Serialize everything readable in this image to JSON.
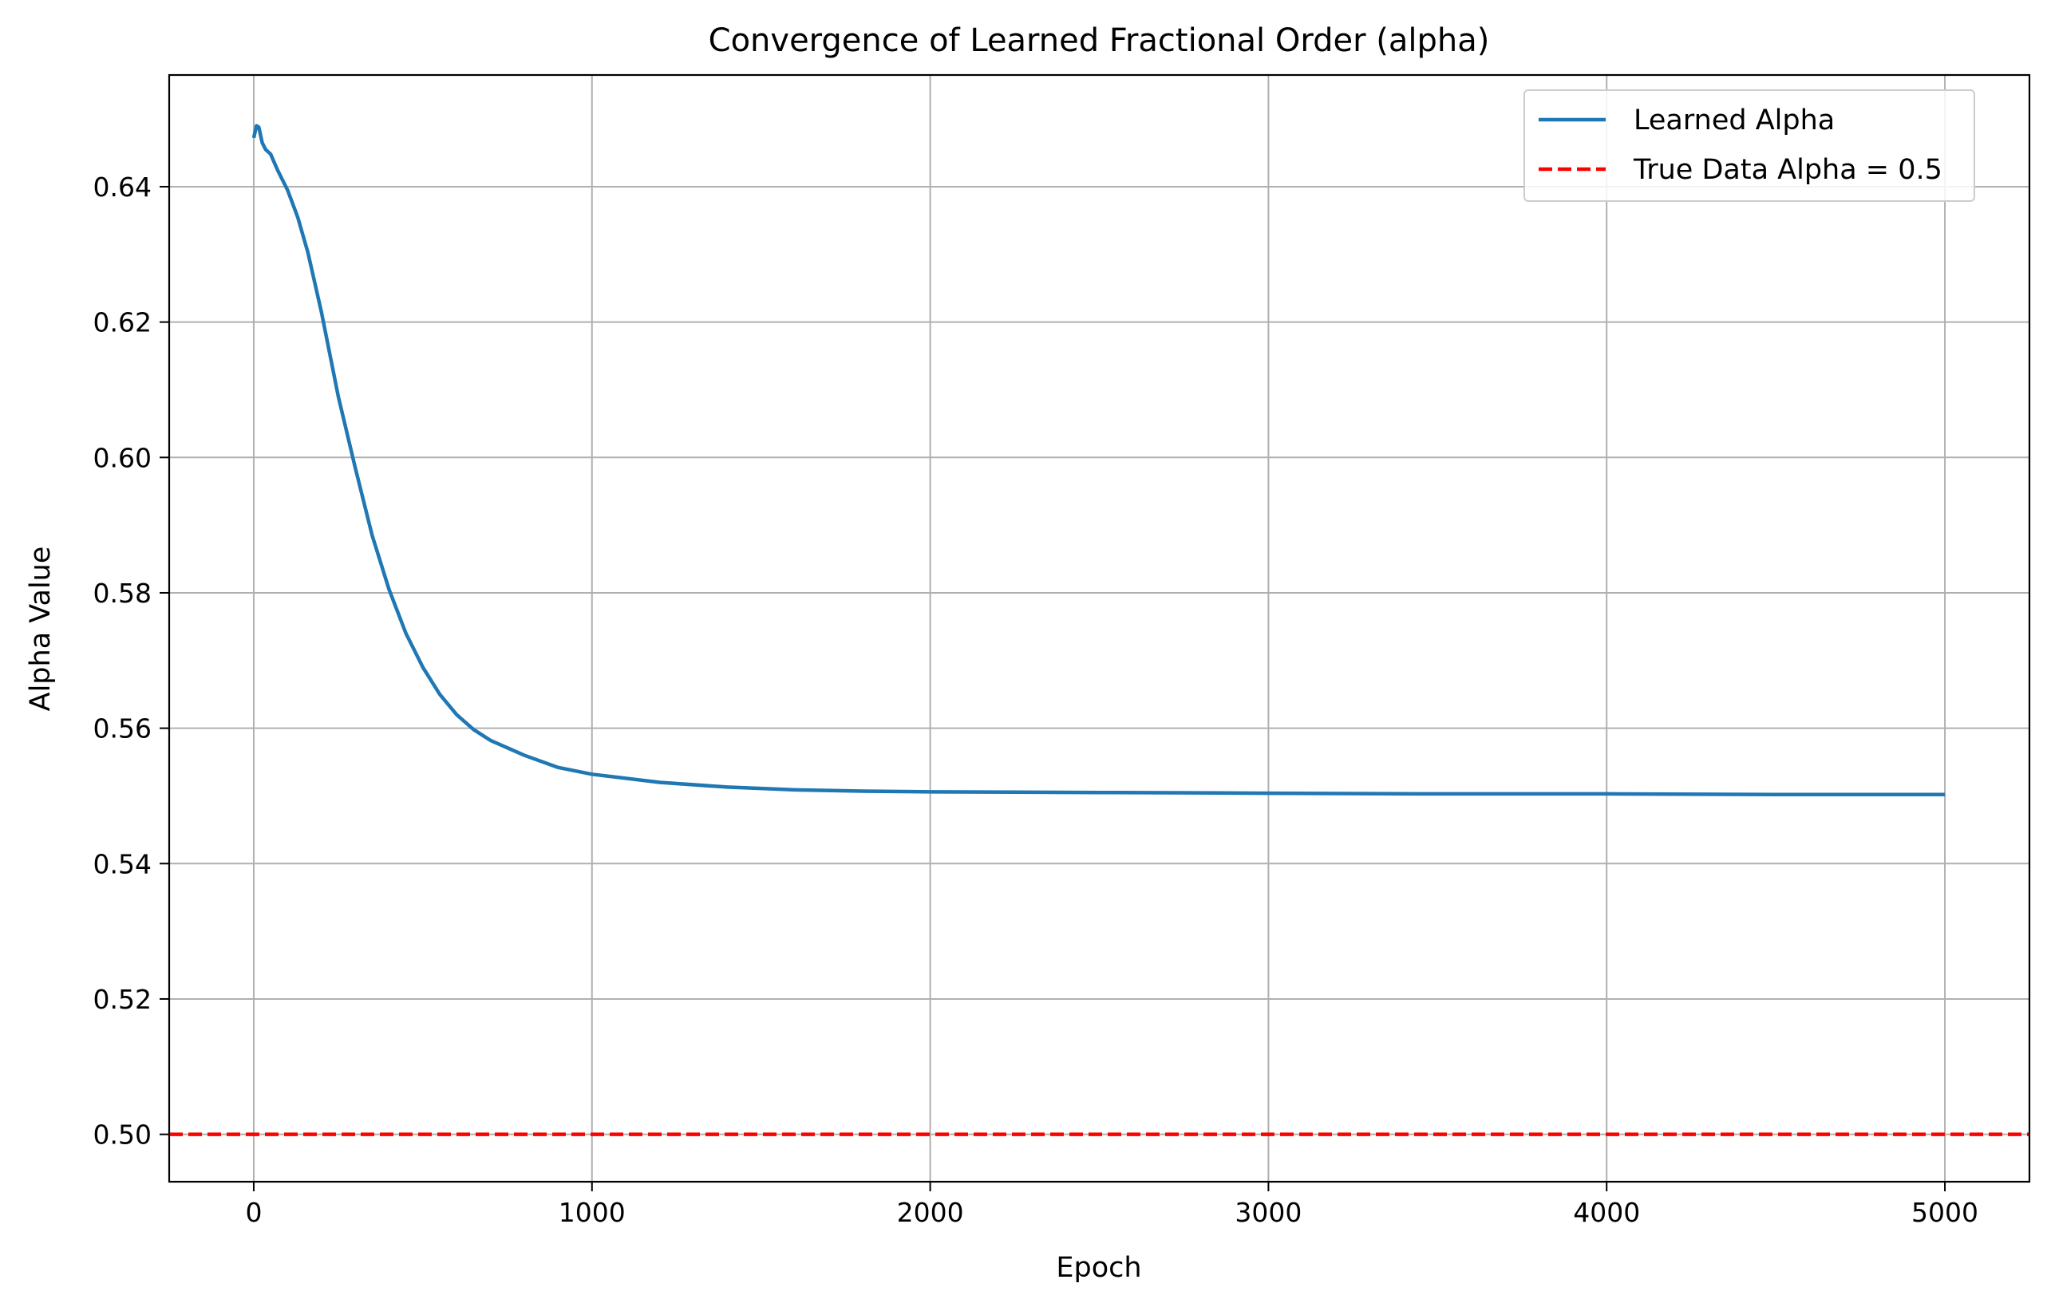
{
  "chart_data": {
    "type": "line",
    "title": "Convergence of Learned Fractional Order (alpha)",
    "xlabel": "Epoch",
    "ylabel": "Alpha Value",
    "xlim": [
      -250,
      5250
    ],
    "ylim": [
      0.493,
      0.6565
    ],
    "xticks": [
      0,
      1000,
      2000,
      3000,
      4000,
      5000
    ],
    "yticks": [
      0.5,
      0.52,
      0.54,
      0.56,
      0.58,
      0.6,
      0.62,
      0.64
    ],
    "xtick_labels": [
      "0",
      "1000",
      "2000",
      "3000",
      "4000",
      "5000"
    ],
    "ytick_labels": [
      "0.50",
      "0.52",
      "0.54",
      "0.56",
      "0.58",
      "0.60",
      "0.62",
      "0.64"
    ],
    "grid": true,
    "legend_position": "top-right",
    "series": [
      {
        "name": "Learned Alpha",
        "color": "#1f77b4",
        "style": "solid",
        "x": [
          0,
          8,
          15,
          25,
          35,
          50,
          70,
          100,
          130,
          160,
          200,
          250,
          300,
          350,
          400,
          450,
          500,
          550,
          600,
          650,
          700,
          800,
          900,
          1000,
          1200,
          1400,
          1600,
          1800,
          2000,
          2500,
          3000,
          3500,
          4000,
          4500,
          5000
        ],
        "y": [
          0.6472,
          0.649,
          0.6488,
          0.6465,
          0.6455,
          0.6448,
          0.6425,
          0.6395,
          0.6355,
          0.6303,
          0.6215,
          0.609,
          0.5985,
          0.5885,
          0.5805,
          0.574,
          0.569,
          0.565,
          0.562,
          0.5598,
          0.5582,
          0.556,
          0.5542,
          0.5532,
          0.552,
          0.5513,
          0.5509,
          0.5507,
          0.5506,
          0.5505,
          0.5504,
          0.5503,
          0.5503,
          0.5502,
          0.5502
        ]
      },
      {
        "name": "True Data Alpha = 0.5",
        "color": "#ff0000",
        "style": "dashed",
        "hline": 0.5
      }
    ]
  }
}
